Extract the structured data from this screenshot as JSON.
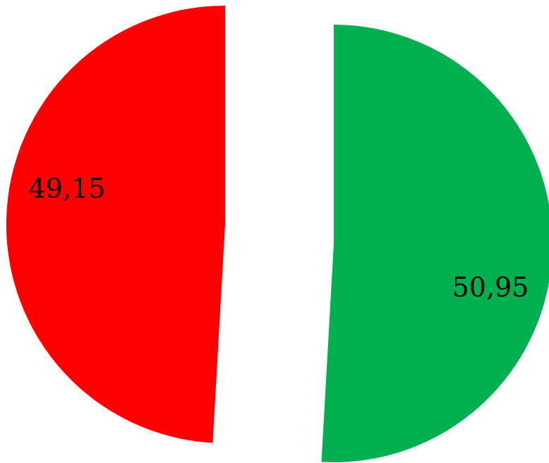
{
  "chart_data": {
    "type": "pie",
    "title": "",
    "slices": [
      {
        "label": "",
        "value": 49.15,
        "display_value": "49,15",
        "color": "#ff0000"
      },
      {
        "label": "",
        "value": 50.95,
        "display_value": "50,95",
        "color": "#00b050"
      }
    ],
    "exploded": true,
    "legend": "none"
  }
}
